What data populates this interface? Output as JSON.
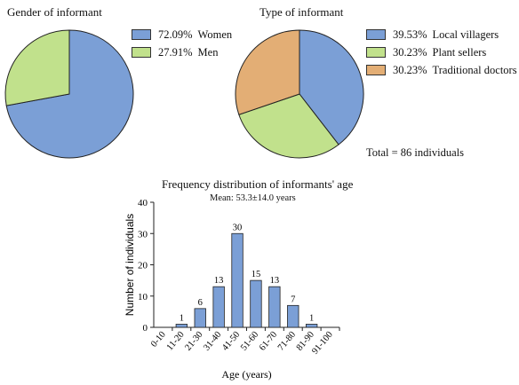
{
  "chart_data": [
    {
      "type": "pie",
      "title": "Gender of informant",
      "slices": [
        {
          "label": "Women",
          "pct_label": "72.09%",
          "value": 72.09,
          "color": "#7b9fd6"
        },
        {
          "label": "Men",
          "pct_label": "27.91%",
          "value": 27.91,
          "color": "#c1e18c"
        }
      ],
      "legend_position": "right"
    },
    {
      "type": "pie",
      "title": "Type of informant",
      "slices": [
        {
          "label": "Local villagers",
          "pct_label": "39.53%",
          "value": 39.53,
          "color": "#7b9fd6"
        },
        {
          "label": "Plant sellers",
          "pct_label": "30.23%",
          "value": 30.23,
          "color": "#c1e18c"
        },
        {
          "label": "Traditional doctors",
          "pct_label": "30.23%",
          "value": 30.23,
          "color": "#e3ae75"
        }
      ],
      "note": "Total = 86 individuals",
      "legend_position": "right"
    },
    {
      "type": "bar",
      "title": "Frequency distribution of informants' age",
      "subtitle": "Mean: 53.3±14.0 years",
      "categories": [
        "0-10",
        "11-20",
        "21-30",
        "31-40",
        "41-50",
        "51-60",
        "61-70",
        "71-80",
        "81-90",
        "91-100"
      ],
      "values": [
        0,
        1,
        6,
        13,
        30,
        15,
        13,
        7,
        1,
        0
      ],
      "data_labels": [
        "",
        "1",
        "6",
        "13",
        "30",
        "15",
        "13",
        "7",
        "1",
        ""
      ],
      "yticks": [
        "0",
        "10",
        "20",
        "30",
        "40"
      ],
      "xlabel": "Age (years)",
      "ylabel": "Number of individuals",
      "ylim": [
        0,
        40
      ],
      "bar_color": "#7b9fd6",
      "grid": false
    }
  ]
}
